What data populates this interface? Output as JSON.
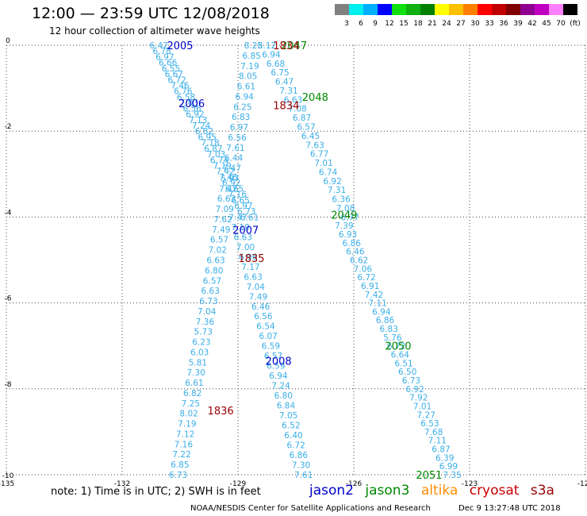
{
  "header": {
    "title": "12:00 — 23:59 UTC 12/08/2018",
    "subtitle": "12 hour collection of altimeter wave heights"
  },
  "color_scale": {
    "ticks": [
      "3",
      "6",
      "9",
      "12",
      "15",
      "18",
      "21",
      "24",
      "27",
      "30",
      "33",
      "36",
      "39",
      "42",
      "45",
      "70",
      "(ft)"
    ],
    "colors": [
      "#808080",
      "#00f0f0",
      "#00b0ff",
      "#0000ff",
      "#10e010",
      "#10b010",
      "#008000",
      "#ffff00",
      "#ffc000",
      "#ff8000",
      "#ff0000",
      "#c00000",
      "#800000",
      "#900090",
      "#c000c0",
      "#ff80ff",
      "#000000"
    ]
  },
  "footer": {
    "note": "note:  1) Time is in UTC;  2) SWH is in feet",
    "credit": "NOAA/NESDIS Center for Satellite Applications and Research",
    "timestamp": "Dec  9 13:27:48 UTC 2018"
  },
  "missions": [
    {
      "name": "jason2",
      "color": "#0000cc"
    },
    {
      "name": "jason3",
      "color": "#008800"
    },
    {
      "name": "altika",
      "color": "#ff8c00"
    },
    {
      "name": "cryosat",
      "color": "#cc0000"
    },
    {
      "name": "s3a",
      "color": "#990000"
    }
  ],
  "chart_data": {
    "type": "scatter",
    "title": "12:00 — 23:59 UTC 12/08/2018",
    "xlim": [
      -135,
      -120
    ],
    "ylim": [
      -10,
      0
    ],
    "x_ticks": [
      "-135",
      "-132",
      "-129",
      "-126",
      "-123",
      "-120"
    ],
    "y_ticks": [
      "0",
      "-2",
      "-4",
      "-6",
      "-8",
      "-10"
    ],
    "value_color": "#3aaee8",
    "grid": true,
    "track_labels": [
      {
        "text": "2005",
        "x": -130.5,
        "y": 0,
        "color": "#0000cc"
      },
      {
        "text": "2006",
        "x": -130.2,
        "y": -1.35,
        "color": "#0000cc"
      },
      {
        "text": "2007",
        "x": -128.8,
        "y": -4.3,
        "color": "#0000cc"
      },
      {
        "text": "2008",
        "x": -127.95,
        "y": -7.35,
        "color": "#0000cc"
      },
      {
        "text": "2047",
        "x": -127.55,
        "y": 0,
        "color": "#008800"
      },
      {
        "text": "2048",
        "x": -127.0,
        "y": -1.2,
        "color": "#008800"
      },
      {
        "text": "2049",
        "x": -126.25,
        "y": -3.95,
        "color": "#008800"
      },
      {
        "text": "2050",
        "x": -124.85,
        "y": -7.0,
        "color": "#008800"
      },
      {
        "text": "2051",
        "x": -124.05,
        "y": -10.0,
        "color": "#008800"
      },
      {
        "text": "1834",
        "x": -127.75,
        "y": 0,
        "color": "#990000"
      },
      {
        "text": "1834",
        "x": -127.75,
        "y": -1.4,
        "color": "#990000"
      },
      {
        "text": "1835",
        "x": -128.65,
        "y": -4.95,
        "color": "#990000"
      },
      {
        "text": "1836",
        "x": -129.45,
        "y": -8.5,
        "color": "#990000"
      }
    ],
    "series": [
      {
        "track": "jason2-2005-2006",
        "x_start": -131.05,
        "y_start": 0,
        "x_end": -128.7,
        "y_end": -4.0,
        "values": [
          "6.42",
          "6.78",
          "6.97",
          "6.66",
          "6.55",
          "6.67",
          "6.72",
          "7.46",
          "6.76",
          "6.58",
          "7.03",
          "6.56",
          "6.92",
          "7.13",
          "7.24",
          "6.82",
          "6.95",
          "7.18",
          "6.87",
          "7.03",
          "6.74",
          "7.19",
          "7.42",
          "7.46",
          "6.92",
          "6.65",
          "7.16",
          "6.65",
          "6.97",
          "6.73",
          "6.61"
        ]
      },
      {
        "track": "jason2-2007-2008",
        "x_start": -129.0,
        "y_start": -4.0,
        "x_end": -127.3,
        "y_end": -10.0,
        "values": [
          "7.47",
          "7.19",
          "6.63",
          "7.00",
          "6.96",
          "7.17",
          "6.63",
          "7.04",
          "7.49",
          "6.46",
          "6.56",
          "6.54",
          "6.07",
          "6.59",
          "6.57",
          "6.59",
          "6.94",
          "7.24",
          "6.80",
          "6.84",
          "7.05",
          "6.52",
          "6.40",
          "6.72",
          "6.86",
          "7.30",
          "7.61"
        ]
      },
      {
        "track": "jason3-2048-2049",
        "x_start": -128.25,
        "y_start": 0,
        "x_end": -126.1,
        "y_end": -4.0,
        "values": [
          "8.12",
          "6.94",
          "6.68",
          "6.75",
          "6.47",
          "7.31",
          "6.63",
          "7.08",
          "6.87",
          "6.57",
          "6.45",
          "7.63",
          "6.77",
          "7.01",
          "6.74",
          "6.92",
          "7.31",
          "6.36",
          "7.08",
          "6.77"
        ]
      },
      {
        "track": "jason3-2049-2051",
        "x_start": -126.25,
        "y_start": -4.2,
        "x_end": -123.45,
        "y_end": -10.0,
        "values": [
          "7.39",
          "6.93",
          "6.86",
          "6.46",
          "6.62",
          "7.06",
          "6.72",
          "6.91",
          "7.42",
          "7.11",
          "6.94",
          "6.86",
          "6.83",
          "5.76",
          "6.72",
          "6.64",
          "6.51",
          "6.50",
          "6.73",
          "6.92",
          "7.92",
          "7.01",
          "7.27",
          "6.53",
          "7.68",
          "7.11",
          "6.87",
          "6.39",
          "6.99",
          "7.35"
        ]
      },
      {
        "track": "s3a-1834-1836",
        "x_start": -128.6,
        "y_start": 0,
        "x_end": -130.55,
        "y_end": -10.0,
        "values": [
          "8.25",
          "6.85",
          "7.19",
          "8.05",
          "6.61",
          "6.94",
          "6.25",
          "6.83",
          "6.97",
          "6.56",
          "7.61",
          "6.44",
          "7.47",
          "5.97",
          "7.42",
          "6.63",
          "7.09",
          "7.62",
          "7.49",
          "6.57",
          "7.02",
          "6.63",
          "6.80",
          "6.57",
          "6.63",
          "6.73",
          "7.04",
          "7.36",
          "5.73",
          "6.23",
          "6.03",
          "5.81",
          "7.30",
          "6.61",
          "6.82",
          "7.25",
          "8.02",
          "7.19",
          "7.12",
          "7.16",
          "7.22",
          "6.85",
          "6.73"
        ]
      }
    ]
  }
}
